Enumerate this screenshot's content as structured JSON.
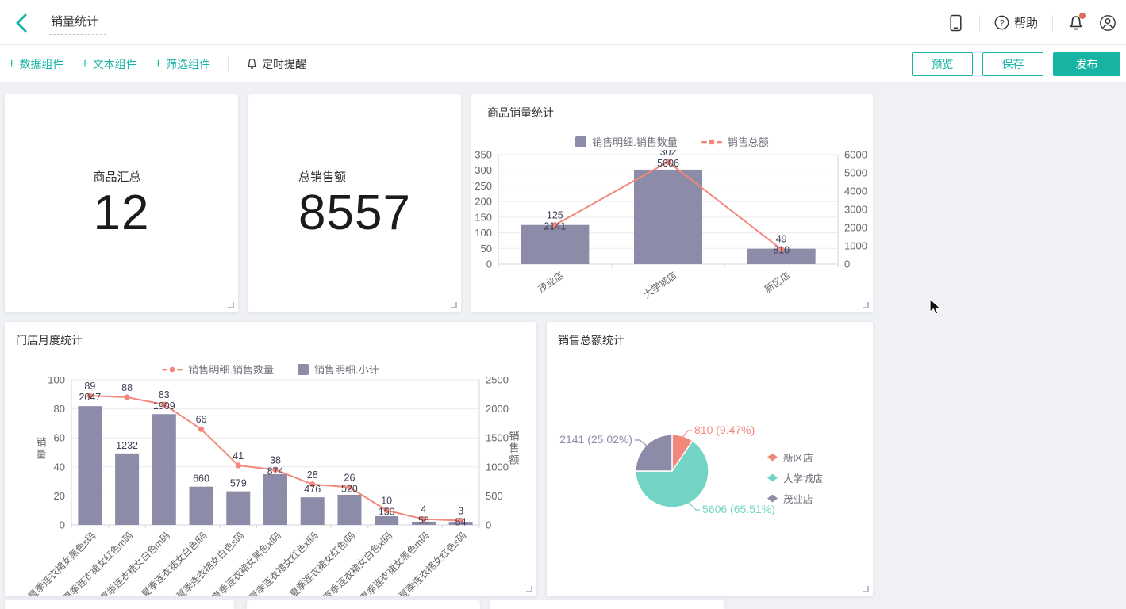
{
  "header": {
    "title": "销量统计",
    "help_label": "帮助",
    "help_glyph": "?"
  },
  "toolbar": {
    "plus_glyph": "+",
    "add_data": "数据组件",
    "add_text": "文本组件",
    "add_filter": "筛选组件",
    "timer": "定时提醒",
    "preview": "预览",
    "save": "保存",
    "publish": "发布"
  },
  "kpi_cards": [
    {
      "title": "商品汇总",
      "value": "12"
    },
    {
      "title": "总销售额",
      "value": "8557"
    }
  ],
  "colors": {
    "accent_teal": "#17b3a3",
    "bar_purple": "#8d8ca8",
    "line_coral": "#f2887b",
    "pie_teal": "#73d4c5",
    "notification_dot": "#dd6a5c",
    "axis_text": "#666666",
    "value_label": "#3d3d52",
    "grid_line": "#ebebf0",
    "axis_line": "#d6d6de"
  },
  "chart_data": [
    {
      "id": "product-sales",
      "type": "bar+line",
      "title": "商品销量统计",
      "categories": [
        "茂业店",
        "大学城店",
        "新区店"
      ],
      "series": [
        {
          "name": "销售明细.销售数量",
          "type": "bar",
          "axis": "left",
          "color": "#8d8ca8",
          "values": [
            125,
            302,
            49
          ]
        },
        {
          "name": "销售总额",
          "type": "line",
          "axis": "right",
          "color": "#f2887b",
          "values": [
            2141,
            5606,
            810
          ]
        }
      ],
      "left_axis": {
        "min": 0,
        "max": 350,
        "step": 50
      },
      "right_axis": {
        "min": 0,
        "max": 6000,
        "step": 1000
      },
      "x_label_rotate": -35,
      "grid": true,
      "legend_position": "top"
    },
    {
      "id": "store-monthly",
      "type": "bar+line",
      "title": "门店月度统计",
      "categories": [
        "夏季连衣裙女黑色s码",
        "夏季连衣裙女红色m码",
        "夏季连衣裙女白色m码",
        "夏季连衣裙女白色l码",
        "夏季连衣裙女白色s码",
        "夏季连衣裙女黑色xl码",
        "夏季连衣裙女红色xl码",
        "夏季连衣裙女红色l码",
        "夏季连衣裙女白色xl码",
        "夏季连衣裙女黑色m码",
        "夏季连衣裙女红色s码"
      ],
      "series": [
        {
          "name": "销售明细.销售数量",
          "type": "line",
          "axis": "left",
          "color": "#f2887b",
          "values": [
            89,
            88,
            83,
            66,
            41,
            38,
            28,
            26,
            10,
            4,
            3
          ]
        },
        {
          "name": "销售明细.小计",
          "type": "bar",
          "axis": "right",
          "color": "#8d8ca8",
          "values": [
            2047,
            1232,
            1909,
            660,
            579,
            874,
            476,
            520,
            150,
            56,
            54
          ]
        }
      ],
      "left_axis": {
        "min": 0,
        "max": 100,
        "step": 20,
        "name": "销量"
      },
      "right_axis": {
        "min": 0,
        "max": 2500,
        "step": 500,
        "name": "销售额"
      },
      "x_label_rotate": -45,
      "grid": true,
      "legend_position": "top"
    },
    {
      "id": "sales-total-pie",
      "type": "pie",
      "title": "销售总额统计",
      "slices": [
        {
          "name": "新区店",
          "value": 810,
          "pct": "9.47%",
          "label": "810 (9.47%)",
          "color": "#f2887b"
        },
        {
          "name": "大学城店",
          "value": 5606,
          "pct": "65.51%",
          "label": "5606 (65.51%)",
          "color": "#73d4c5"
        },
        {
          "name": "茂业店",
          "value": 2141,
          "pct": "25.02%",
          "label": "2141 (25.02%)",
          "color": "#8d8ca8"
        }
      ],
      "legend_position": "right"
    }
  ]
}
